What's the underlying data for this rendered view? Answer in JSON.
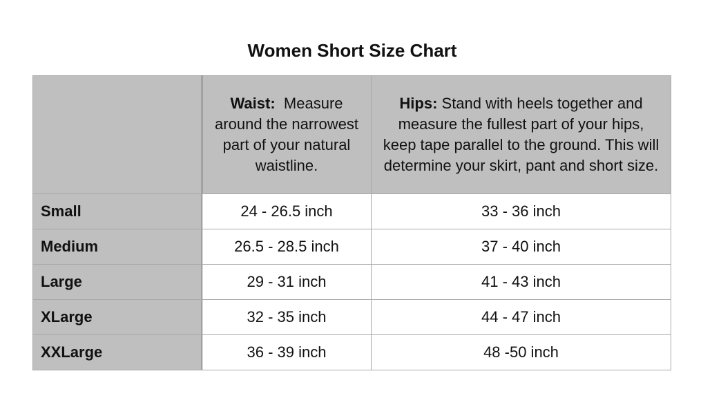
{
  "title": "Women Short Size Chart",
  "header": {
    "waist_label": "Waist:",
    "waist_text": "Measure around the narrowest part of your natural waistline.",
    "hips_label": "Hips:",
    "hips_text": "Stand with heels together and measure the fullest part of your hips, keep tape parallel to the ground. This will determine your skirt, pant and short size."
  },
  "rows": [
    {
      "size": "Small",
      "waist": "24 - 26.5 inch",
      "hips": "33 - 36 inch"
    },
    {
      "size": "Medium",
      "waist": "26.5 - 28.5 inch",
      "hips": "37 - 40 inch"
    },
    {
      "size": "Large",
      "waist": "29 - 31 inch",
      "hips": "41 - 43 inch"
    },
    {
      "size": "XLarge",
      "waist": "32 - 35 inch",
      "hips": "44 - 47 inch"
    },
    {
      "size": "XXLarge",
      "waist": "36 - 39 inch",
      "hips": "48 -50 inch"
    }
  ]
}
